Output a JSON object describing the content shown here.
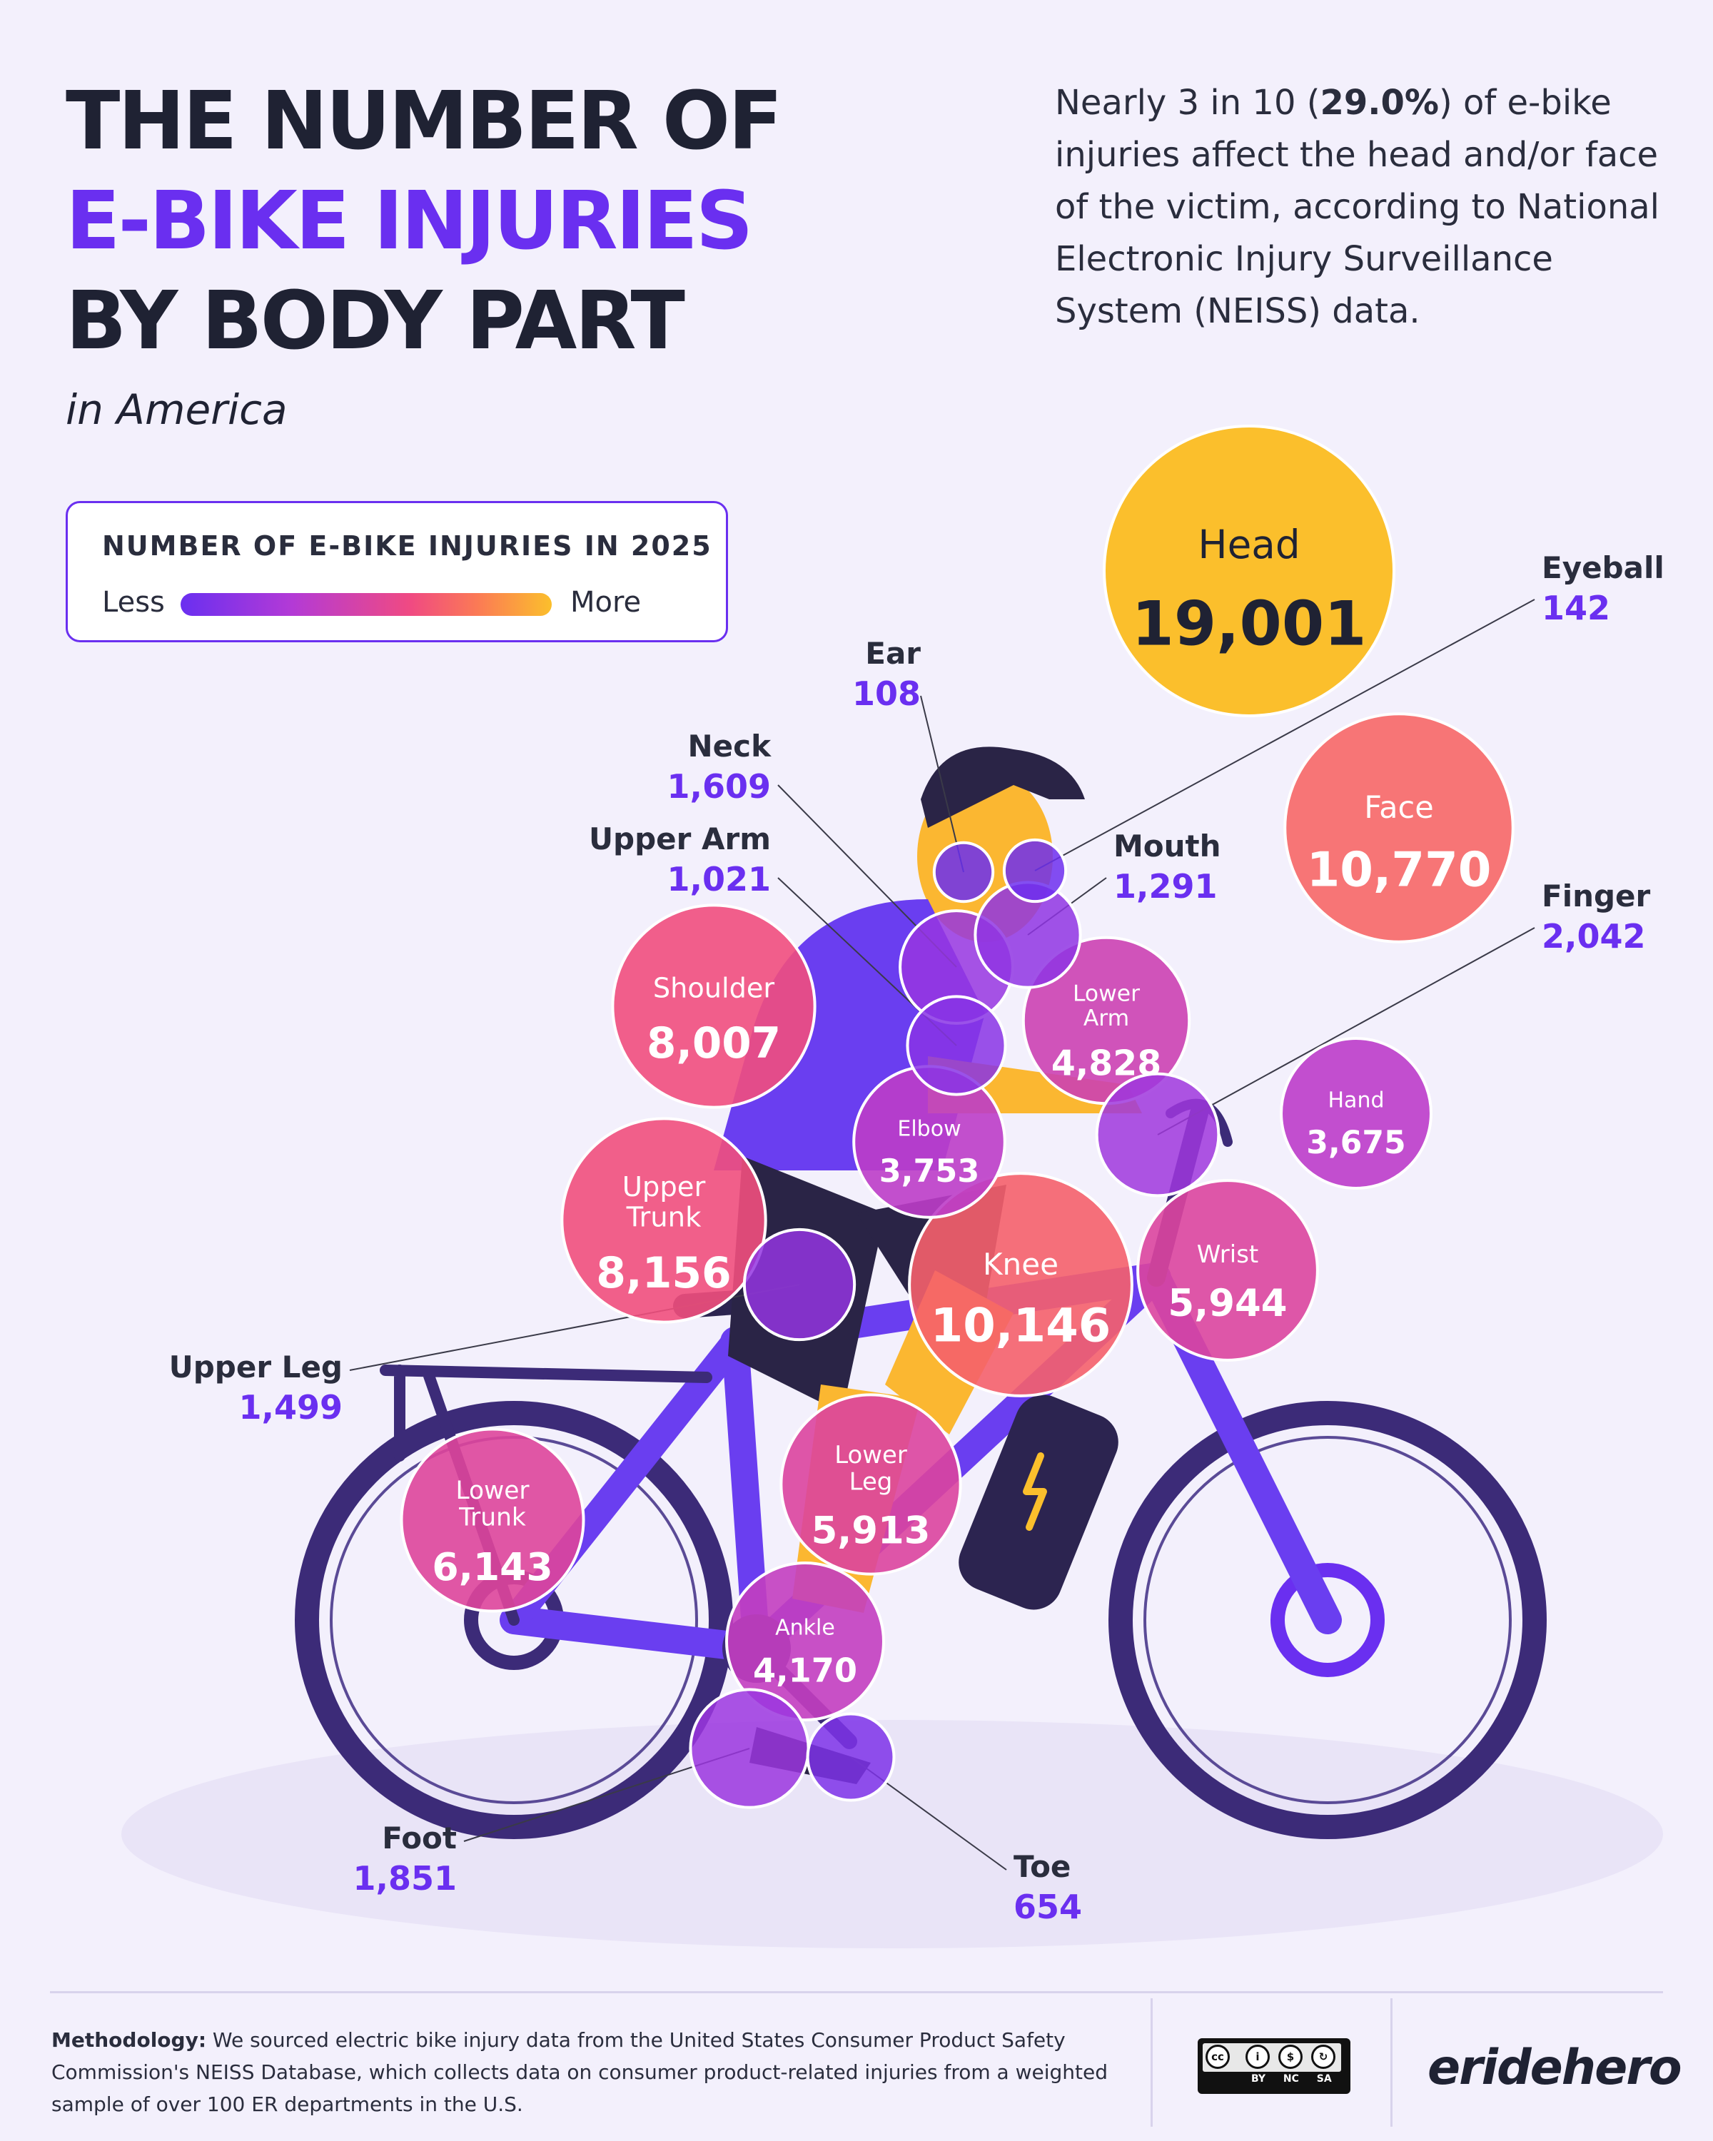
{
  "title": {
    "line1": "THE NUMBER OF",
    "line2": "E-BIKE INJURIES",
    "line3": "BY BODY PART",
    "subtitle": "in America"
  },
  "intro": {
    "before": "Nearly 3 in 10 (",
    "bold": "29.0%",
    "after": ") of e-bike injuries affect the head and/or face of the victim, according to National Electronic Injury Surveillance System (NEISS) data."
  },
  "legend": {
    "title": "NUMBER OF E-BIKE INJURIES IN 2025",
    "less": "Less",
    "more": "More"
  },
  "colors": {
    "accent": "#6a2ff0",
    "scale": [
      "#6a2ff0",
      "#b33ad6",
      "#f04a82",
      "#fb7a55",
      "#fbbf2c"
    ]
  },
  "chart_data": {
    "type": "bubble",
    "title": "NUMBER OF E-BIKE INJURIES IN 2025",
    "points": [
      {
        "label": "Head",
        "value": 19001
      },
      {
        "label": "Face",
        "value": 10770
      },
      {
        "label": "Knee",
        "value": 10146
      },
      {
        "label": "Upper Trunk",
        "value": 8156
      },
      {
        "label": "Shoulder",
        "value": 8007
      },
      {
        "label": "Lower Trunk",
        "value": 6143
      },
      {
        "label": "Wrist",
        "value": 5944
      },
      {
        "label": "Lower Leg",
        "value": 5913
      },
      {
        "label": "Lower Arm",
        "value": 4828
      },
      {
        "label": "Ankle",
        "value": 4170
      },
      {
        "label": "Elbow",
        "value": 3753
      },
      {
        "label": "Hand",
        "value": 3675
      },
      {
        "label": "Finger",
        "value": 2042
      },
      {
        "label": "Foot",
        "value": 1851
      },
      {
        "label": "Neck",
        "value": 1609
      },
      {
        "label": "Upper Leg",
        "value": 1499
      },
      {
        "label": "Mouth",
        "value": 1291
      },
      {
        "label": "Upper Arm",
        "value": 1021
      },
      {
        "label": "Toe",
        "value": 654
      },
      {
        "label": "Eyeball",
        "value": 142
      },
      {
        "label": "Ear",
        "value": 108
      }
    ],
    "display": {
      "Head": "19,001",
      "Face": "10,770",
      "Knee": "10,146",
      "Upper Trunk": "8,156",
      "Shoulder": "8,007",
      "Lower Trunk": "6,143",
      "Wrist": "5,944",
      "Lower Leg": "5,913",
      "Lower Arm": "4,828",
      "Ankle": "4,170",
      "Elbow": "3,753",
      "Hand": "3,675",
      "Finger": "2,042",
      "Foot": "1,851",
      "Neck": "1,609",
      "Upper Leg": "1,499",
      "Mouth": "1,291",
      "Upper Arm": "1,021",
      "Toe": "654",
      "Eyeball": "142",
      "Ear": "108"
    }
  },
  "footer": {
    "methodology_label": "Methodology:",
    "methodology_text": "We sourced electric bike injury data from the United States Consumer Product Safety Commission's NEISS Database, which collects data on consumer product-related injuries from a weighted sample of over 100 ER departments in the U.S.",
    "license": "BY NC SA",
    "brand": "eridehero"
  }
}
